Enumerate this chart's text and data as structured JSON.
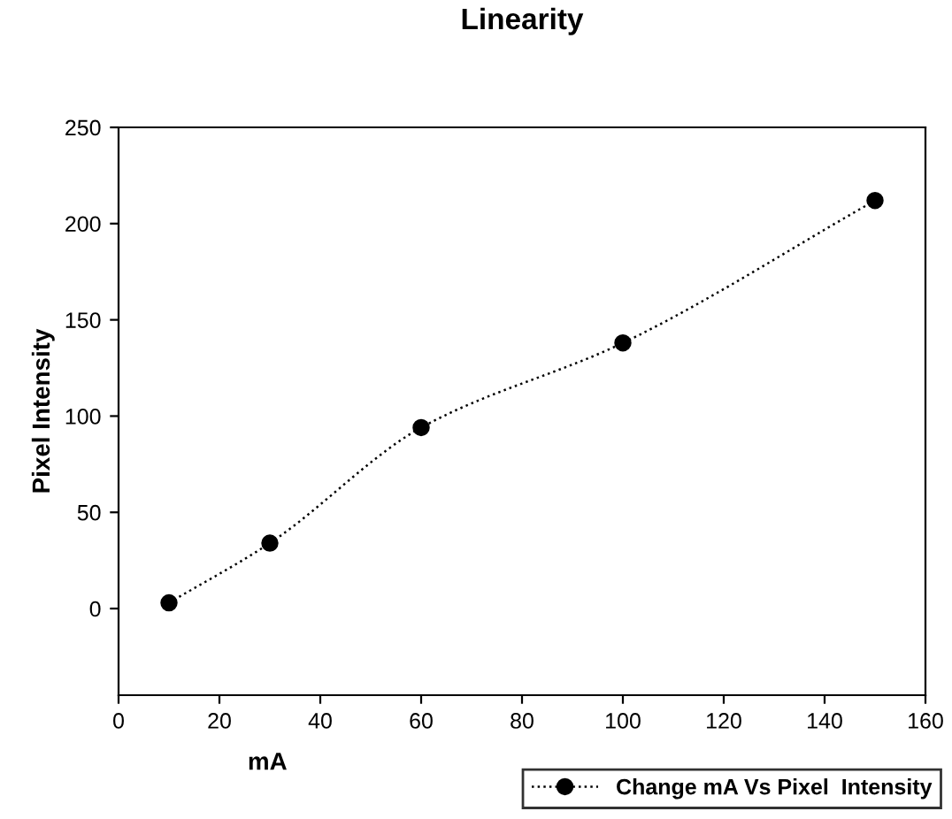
{
  "chart_data": {
    "type": "line",
    "title": "Linearity",
    "xlabel": "mA",
    "ylabel": "Pixel Intensity",
    "x": [
      10,
      30,
      60,
      100,
      150
    ],
    "series": [
      {
        "name": "Change mA Vs Pixel  Intensity",
        "color": "#000000",
        "values": [
          3,
          34,
          94,
          138,
          212
        ]
      }
    ],
    "xlim": [
      0,
      160
    ],
    "xticks": [
      0,
      20,
      40,
      60,
      80,
      100,
      120,
      140,
      160
    ],
    "ylim": [
      -45,
      250
    ],
    "yticks": [
      0,
      50,
      100,
      150,
      200,
      250
    ],
    "marker": "circle",
    "line_style": "dotted",
    "grid": false,
    "legend": "bottom right"
  }
}
